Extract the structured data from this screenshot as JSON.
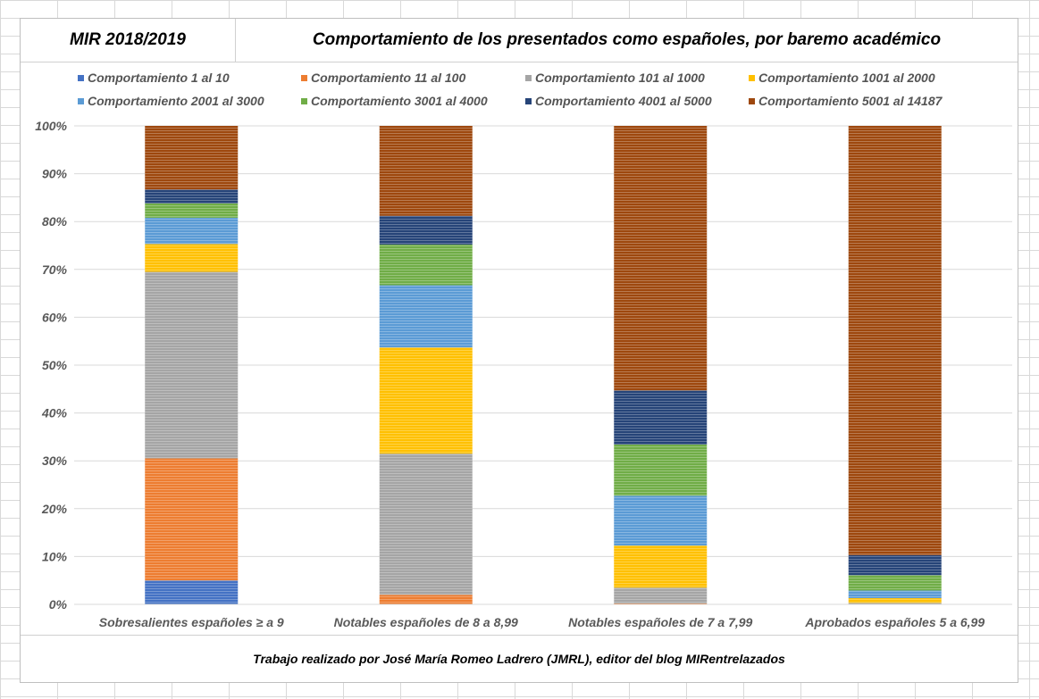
{
  "header": {
    "left_title": "MIR 2018/2019",
    "right_title": "Comportamiento de los presentados como españoles, por baremo académico"
  },
  "footer": {
    "credit": "Trabajo realizado por José María Romeo Ladrero (JMRL), editor del blog MIRentrelazados"
  },
  "chart_data": {
    "type": "bar",
    "stacked": true,
    "percent": true,
    "ylim": [
      0,
      100
    ],
    "yticks": [
      "0%",
      "10%",
      "20%",
      "30%",
      "40%",
      "50%",
      "60%",
      "70%",
      "80%",
      "90%",
      "100%"
    ],
    "legend_position": "top",
    "grid": true,
    "categories": [
      "Sobresalientes españoles ≥ a 9",
      "Notables españoles de 8 a 8,99",
      "Notables españoles de 7 a 7,99",
      "Aprobados españoles 5 a 6,99"
    ],
    "series": [
      {
        "name": "Comportamiento 1 al 10",
        "color": "#4472c4",
        "values": [
          5.0,
          0.0,
          0.0,
          0.0
        ]
      },
      {
        "name": "Comportamiento 11 al 100",
        "color": "#ed7d31",
        "values": [
          25.5,
          2.0,
          0.2,
          0.0
        ]
      },
      {
        "name": "Comportamiento 101 al 1000",
        "color": "#a5a5a5",
        "values": [
          39.0,
          29.5,
          3.3,
          0.3
        ]
      },
      {
        "name": "Comportamiento 1001 al 2000",
        "color": "#ffc000",
        "values": [
          5.8,
          22.2,
          8.8,
          1.0
        ]
      },
      {
        "name": "Comportamiento 2001 al 3000",
        "color": "#5b9bd5",
        "values": [
          5.5,
          13.0,
          10.4,
          1.6
        ]
      },
      {
        "name": "Comportamiento 3001 al 4000",
        "color": "#70ad47",
        "values": [
          3.0,
          8.5,
          10.7,
          3.2
        ]
      },
      {
        "name": "Comportamiento 4001 al 5000",
        "color": "#264478",
        "values": [
          2.9,
          6.0,
          11.3,
          4.2
        ]
      },
      {
        "name": "Comportamiento 5001 al 14187",
        "color": "#9e480e",
        "values": [
          13.3,
          18.8,
          55.3,
          89.7
        ]
      }
    ]
  }
}
